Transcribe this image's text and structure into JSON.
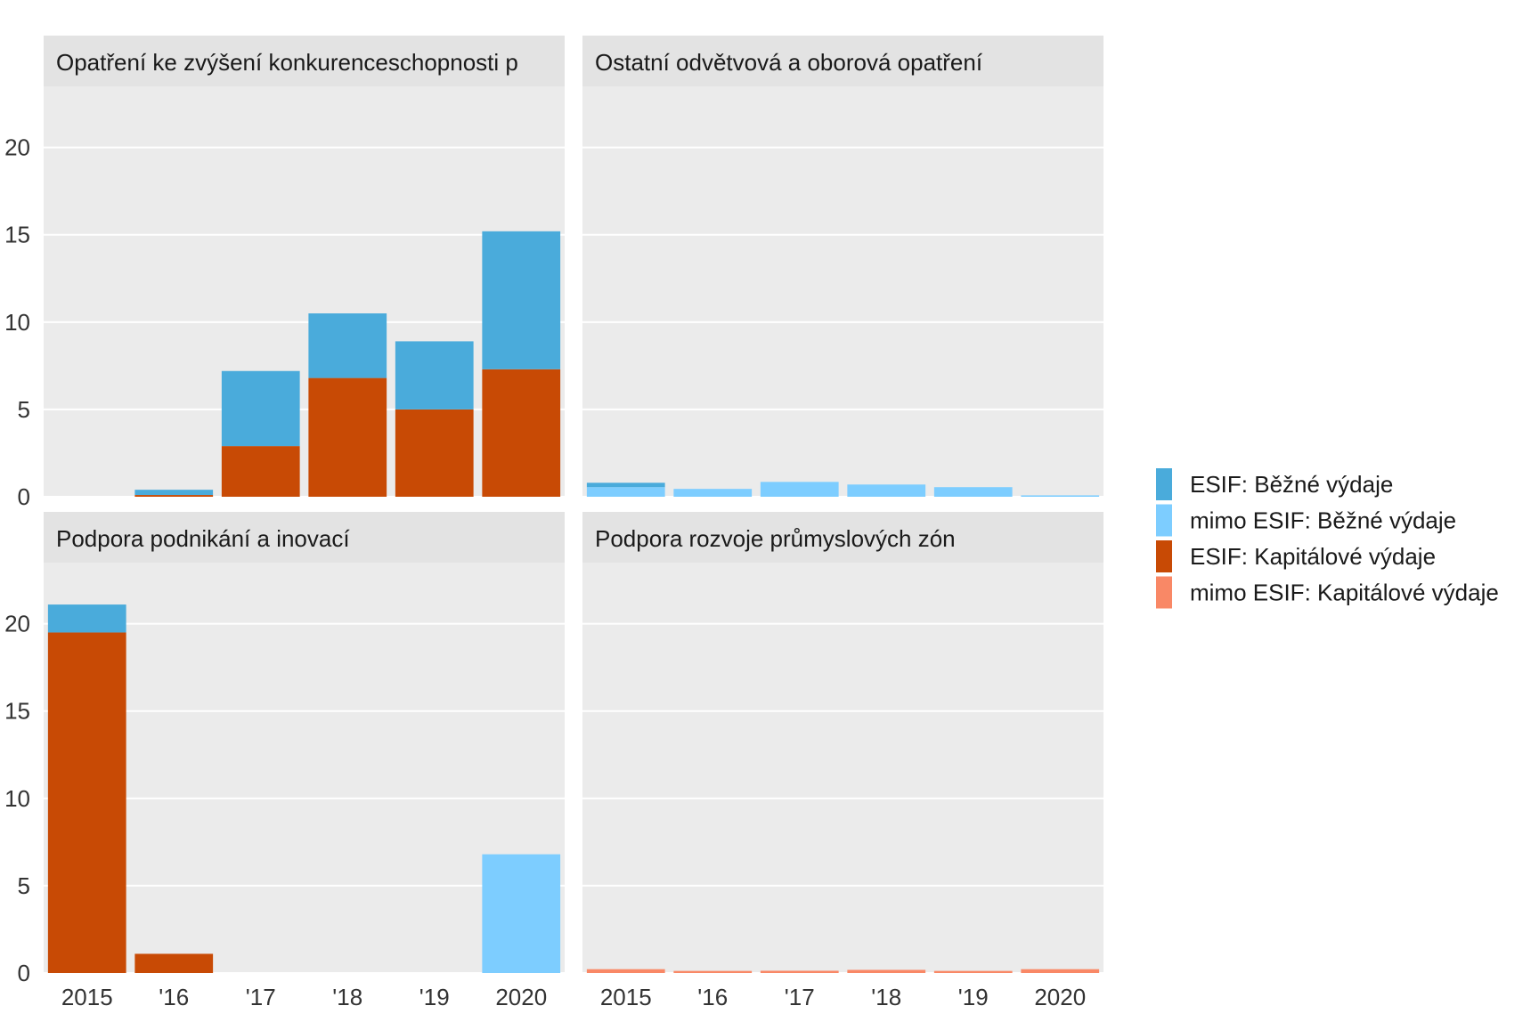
{
  "colors": {
    "panel_bg": "#EBEBEB",
    "strip_bg": "#E3E3E3",
    "grid": "#FFFFFF",
    "esif_bezne": "#4AABDB",
    "mimo_bezne": "#7DCDFF",
    "esif_kapitalove": "#C84A05",
    "mimo_kapitalove": "#F98866"
  },
  "chart_data": {
    "type": "bar",
    "stacked": true,
    "categories": [
      "2015",
      "'16",
      "'17",
      "'18",
      "'19",
      "2020"
    ],
    "ylim": [
      0,
      23.5
    ],
    "yticks": [
      "0",
      "5",
      "10",
      "15",
      "20"
    ],
    "grid": true,
    "legend_position": "right",
    "legend": [
      {
        "key": "esif_bezne",
        "label": "ESIF: Běžné výdaje"
      },
      {
        "key": "mimo_bezne",
        "label": "mimo ESIF: Běžné výdaje"
      },
      {
        "key": "esif_kapitalove",
        "label": "ESIF: Kapitálové výdaje"
      },
      {
        "key": "mimo_kapitalove",
        "label": "mimo ESIF: Kapitálové výdaje"
      }
    ],
    "panels": [
      {
        "title": "Opatření ke zvýšení konkurenceschopnosti p",
        "series": [
          {
            "key": "esif_kapitalove",
            "values": [
              0,
              0.1,
              2.9,
              6.8,
              5.0,
              7.3
            ]
          },
          {
            "key": "mimo_kapitalove",
            "values": [
              0,
              0,
              0,
              0,
              0,
              0
            ]
          },
          {
            "key": "mimo_bezne",
            "values": [
              0,
              0,
              0,
              0,
              0,
              0
            ]
          },
          {
            "key": "esif_bezne",
            "values": [
              0,
              0.3,
              4.3,
              3.7,
              3.9,
              7.9
            ]
          }
        ]
      },
      {
        "title": "Ostatní odvětvová a oborová opatření",
        "series": [
          {
            "key": "esif_kapitalove",
            "values": [
              0,
              0,
              0,
              0,
              0,
              0
            ]
          },
          {
            "key": "mimo_kapitalove",
            "values": [
              0,
              0,
              0,
              0,
              0,
              0
            ]
          },
          {
            "key": "mimo_bezne",
            "values": [
              0.55,
              0.45,
              0.85,
              0.7,
              0.55,
              0.08
            ]
          },
          {
            "key": "esif_bezne",
            "values": [
              0.25,
              0,
              0,
              0,
              0,
              0
            ]
          }
        ]
      },
      {
        "title": "Podpora podnikání a inovací",
        "series": [
          {
            "key": "esif_kapitalove",
            "values": [
              19.5,
              1.1,
              0,
              0,
              0,
              0
            ]
          },
          {
            "key": "mimo_kapitalove",
            "values": [
              0,
              0,
              0,
              0,
              0,
              0
            ]
          },
          {
            "key": "mimo_bezne",
            "values": [
              0,
              0,
              0,
              0,
              0,
              6.8
            ]
          },
          {
            "key": "esif_bezne",
            "values": [
              1.6,
              0,
              0,
              0,
              0,
              0
            ]
          }
        ]
      },
      {
        "title": "Podpora rozvoje průmyslových zón",
        "series": [
          {
            "key": "esif_kapitalove",
            "values": [
              0,
              0,
              0,
              0,
              0,
              0
            ]
          },
          {
            "key": "mimo_kapitalove",
            "values": [
              0.22,
              0.12,
              0.13,
              0.18,
              0.12,
              0.22
            ]
          },
          {
            "key": "mimo_bezne",
            "values": [
              0,
              0,
              0,
              0,
              0,
              0
            ]
          },
          {
            "key": "esif_bezne",
            "values": [
              0,
              0,
              0,
              0,
              0,
              0
            ]
          }
        ]
      }
    ]
  }
}
